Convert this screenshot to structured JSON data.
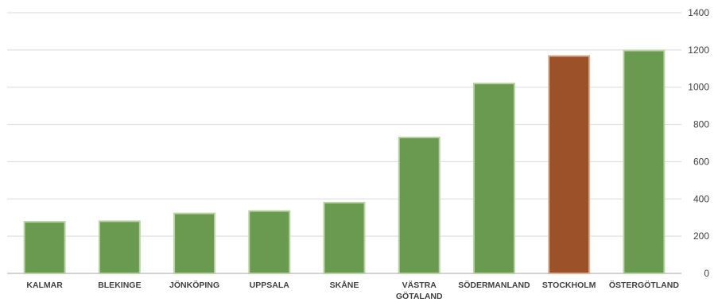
{
  "chart_data": {
    "type": "bar",
    "title": "",
    "xlabel": "",
    "ylabel": "",
    "categories": [
      [
        "KALMAR"
      ],
      [
        "BLEKINGE"
      ],
      [
        "JÖNKÖPING"
      ],
      [
        "UPPSALA"
      ],
      [
        "SKÅNE"
      ],
      [
        "VÄSTRA",
        "GÖTALAND"
      ],
      [
        "SÖDERMANLAND"
      ],
      [
        "STOCKHOLM"
      ],
      [
        "ÖSTERGÖTLAND"
      ]
    ],
    "values": [
      277,
      280,
      322,
      335,
      380,
      730,
      1020,
      1168,
      1197
    ],
    "bar_colors": [
      "#6a9a4f",
      "#6a9a4f",
      "#6a9a4f",
      "#6a9a4f",
      "#6a9a4f",
      "#6a9a4f",
      "#6a9a4f",
      "#9c5129",
      "#6a9a4f"
    ],
    "ylim": [
      0,
      1400
    ],
    "yticks": [
      0,
      200,
      400,
      600,
      800,
      1000,
      1200,
      1400
    ],
    "y_axis_side": "right",
    "grid": true,
    "legend": "none"
  }
}
